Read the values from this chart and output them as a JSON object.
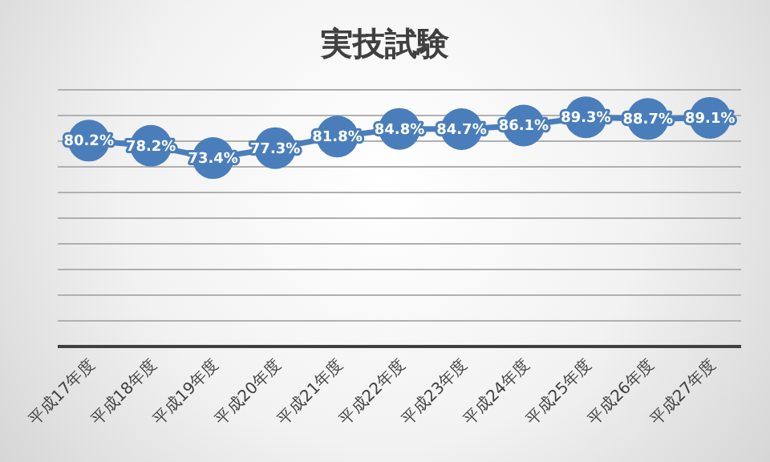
{
  "chart_data": {
    "type": "line",
    "title": "実技試験",
    "categories": [
      "平成17年度",
      "平成18年度",
      "平成19年度",
      "平成20年度",
      "平成21年度",
      "平成22年度",
      "平成23年度",
      "平成24年度",
      "平成25年度",
      "平成26年度",
      "平成27年度"
    ],
    "series": [
      {
        "color": "#4a7ebb",
        "values": [
          80.2,
          78.2,
          73.4,
          77.3,
          81.8,
          84.8,
          84.7,
          86.1,
          89.3,
          88.7,
          89.1
        ],
        "value_labels": [
          "80.2%",
          "78.2%",
          "73.4%",
          "77.3%",
          "81.8%",
          "84.8%",
          "84.7%",
          "86.1%",
          "89.3%",
          "88.7%",
          "89.1%"
        ]
      }
    ],
    "ylim": [
      0,
      100
    ],
    "yticks": [
      {
        "value": 0,
        "label": null
      },
      {
        "value": 10,
        "label": null
      },
      {
        "value": 20,
        "label": null
      },
      {
        "value": 30,
        "label": null
      },
      {
        "value": 40,
        "label": null
      },
      {
        "value": 50,
        "label": null
      },
      {
        "value": 60,
        "label": null
      },
      {
        "value": 70,
        "label": null
      },
      {
        "value": 80,
        "label": null
      },
      {
        "value": 90,
        "label": null
      },
      {
        "value": 100,
        "label": null
      }
    ],
    "tick_labels": "x",
    "grid": "y",
    "marker": "circle",
    "line_style": "solid"
  }
}
